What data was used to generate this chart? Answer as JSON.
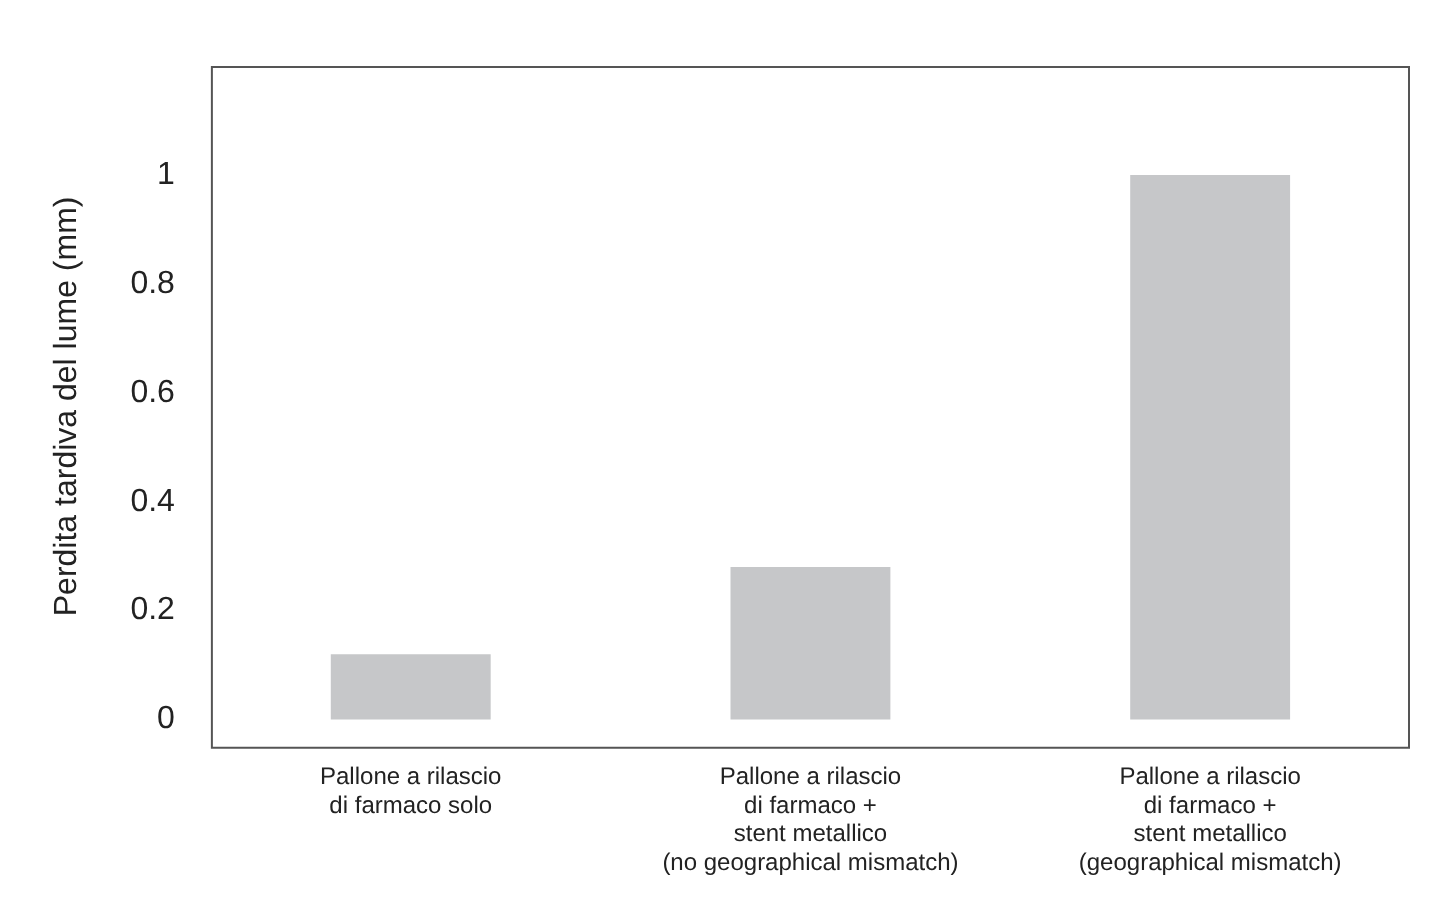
{
  "chart_data": {
    "type": "bar",
    "ylabel": "Perdita tardiva del lume (mm)",
    "categories": [
      "Pallone a rilascio\ndi farmaco solo",
      "Pallone a rilascio\ndi farmaco +\nstent metallico\n(no geographical mismatch)",
      "Pallone a rilascio\ndi farmaco +\nstent metallico\n(geographical mismatch)"
    ],
    "values": [
      0.12,
      0.28,
      1.0
    ],
    "color": "#c6c7c9",
    "ylim": [
      -0.05,
      1.2
    ],
    "yticks": [
      0,
      0.2,
      0.4,
      0.6,
      0.8,
      1
    ],
    "grid": false,
    "legend": false
  }
}
